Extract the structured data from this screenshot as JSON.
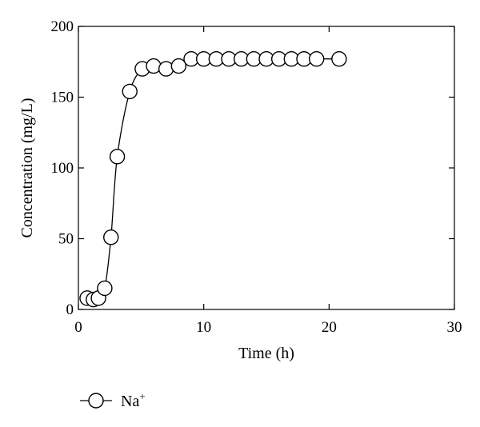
{
  "chart_data": {
    "type": "line",
    "title": "",
    "xlabel": "Time (h)",
    "ylabel": "Concentration (mg/L)",
    "xlim": [
      0,
      30
    ],
    "ylim": [
      0,
      200
    ],
    "x_ticks": [
      0,
      10,
      20,
      30
    ],
    "y_ticks": [
      0,
      50,
      100,
      150,
      200
    ],
    "grid": false,
    "legend_position": "bottom-left",
    "series": [
      {
        "name": "Na",
        "name_superscript": "+",
        "marker": "open-circle",
        "color": "#000000",
        "x": [
          0.7,
          1.2,
          1.6,
          2.1,
          2.6,
          3.1,
          4.1,
          5.1,
          6.0,
          7.0,
          8.0,
          9.0,
          10.0,
          11.0,
          12.0,
          13.0,
          14.0,
          15.0,
          16.0,
          17.0,
          18.0,
          19.0,
          20.8
        ],
        "y": [
          8,
          7,
          8,
          15,
          51,
          108,
          154,
          170,
          172,
          170,
          172,
          177,
          177,
          177,
          177,
          177,
          177,
          177,
          177,
          177,
          177,
          177,
          177
        ]
      }
    ]
  }
}
